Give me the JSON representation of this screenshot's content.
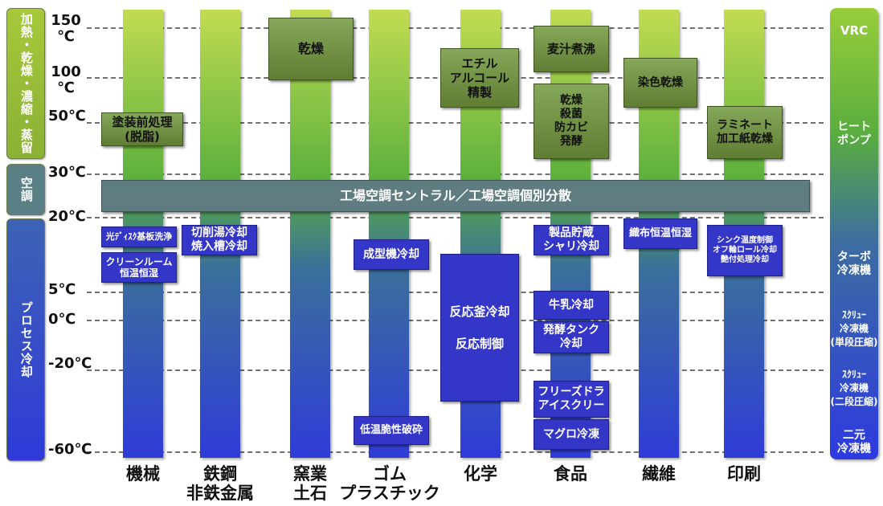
{
  "categories": [
    {
      "label": "加熱・乾燥・濃縮・蒸留"
    },
    {
      "label": "空調"
    },
    {
      "label": "プロセス冷却"
    }
  ],
  "temperature_ticks": [
    {
      "value": 150,
      "label": "150\n℃"
    },
    {
      "value": 100,
      "label": "100\n℃"
    },
    {
      "value": 50,
      "label": "50℃"
    },
    {
      "value": 30,
      "label": "30℃"
    },
    {
      "value": 20,
      "label": "20℃"
    },
    {
      "value": 5,
      "label": "5℃"
    },
    {
      "value": 0,
      "label": "0℃"
    },
    {
      "value": -20,
      "label": "-20℃"
    },
    {
      "value": -60,
      "label": "-60℃"
    }
  ],
  "industries": [
    {
      "label": "機械"
    },
    {
      "label": "鉄鋼\n非鉄金属"
    },
    {
      "label": "窯業\n土石"
    },
    {
      "label": "ゴム\nプラスチック"
    },
    {
      "label": "化学"
    },
    {
      "label": "食品"
    },
    {
      "label": "繊維"
    },
    {
      "label": "印刷"
    }
  ],
  "central_bar": {
    "label": "工場空調セントラル／工場空調個別分散"
  },
  "process_boxes": [
    {
      "label": "塗装前処理\n(脱脂)"
    },
    {
      "label": "光ﾃﾞｨｽｸ基板洗浄"
    },
    {
      "label": "クリーンルーム\n恒温恒湿"
    },
    {
      "label": "切削湯冷却\n焼入槽冷却"
    },
    {
      "label": "乾燥"
    },
    {
      "label": "成型機冷却"
    },
    {
      "label": "低温脆性破砕"
    },
    {
      "label": "エチル\nアルコール\n精製"
    },
    {
      "label": "反応釜冷却"
    },
    {
      "label": "反応制御"
    },
    {
      "label": "麦汁煮沸"
    },
    {
      "label": "乾燥\n殺菌\n防カビ\n発酵"
    },
    {
      "label": "製品貯蔵\nシャリ冷却"
    },
    {
      "label": "牛乳冷却"
    },
    {
      "label": "発酵タンク\n冷却"
    },
    {
      "label": "フリーズドラ\nアイスクリー"
    },
    {
      "label": "マグロ冷凍"
    },
    {
      "label": "染色乾燥"
    },
    {
      "label": "織布恒温恒湿"
    },
    {
      "label": "ラミネート\n加工紙乾燥"
    },
    {
      "label": "シンク温度制御\nオフ輪ロール冷却\n艶付処理冷却"
    }
  ],
  "equipment_labels": [
    {
      "label": "VRC"
    },
    {
      "label": "ヒート\nポンプ"
    },
    {
      "label": "ターボ\n冷凍機"
    },
    {
      "label": "ｽｸﾘｭｰ\n冷凍機\n(単段圧縮)"
    },
    {
      "label": "ｽｸﾘｭｰ\n冷凍機\n(二段圧縮)"
    },
    {
      "label": "二元\n冷凍機"
    }
  ],
  "colors": {
    "heating_green": "#8db83a",
    "cooling_blue": "#2f3cd8",
    "hvac_gray": "#5f7d80"
  }
}
